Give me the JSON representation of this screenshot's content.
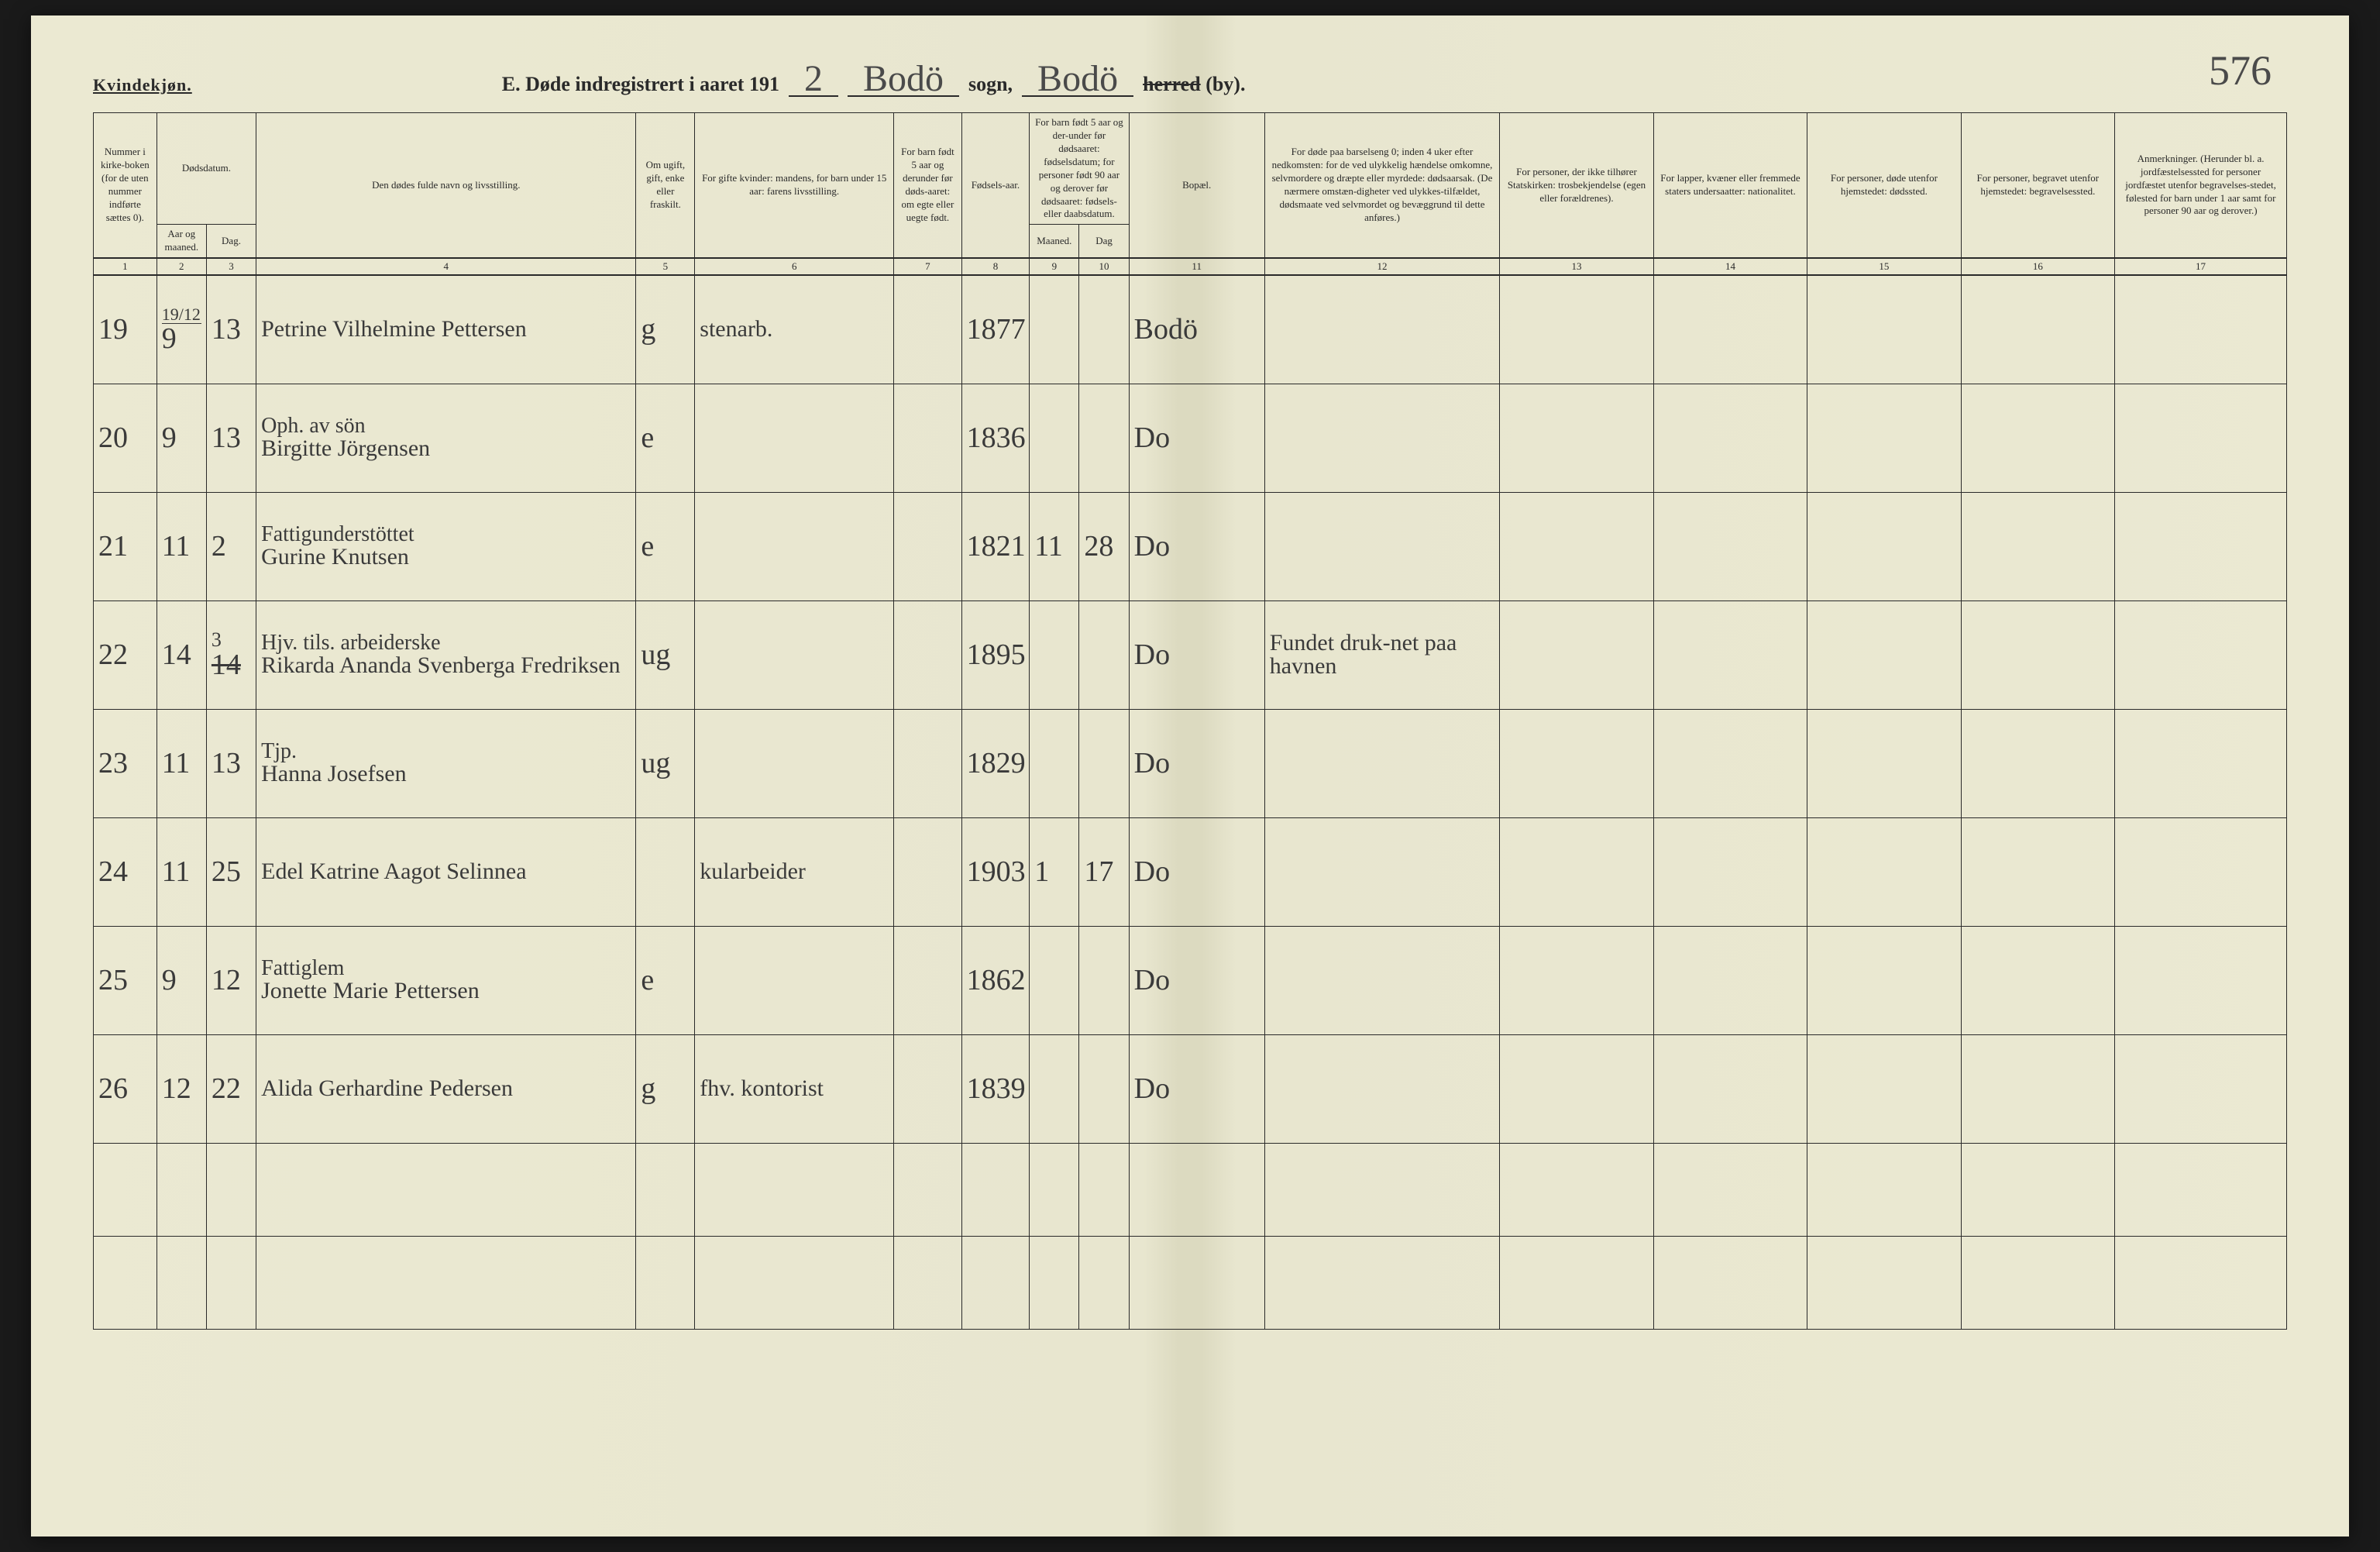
{
  "header": {
    "gender_label": "Kvindekjøn.",
    "title_prefix": "E.   Døde indregistrert i aaret 191",
    "year_digit": "2",
    "sogn_name": "Bodö",
    "sogn_label": "sogn,",
    "herred_name": "Bodö",
    "herred_label_strike": "herred",
    "herred_label_suffix": "(by).",
    "page_number": "576"
  },
  "columns": {
    "h1": "Nummer i kirke-boken (for de uten nummer indførte sættes 0).",
    "h2a": "Dødsdatum.",
    "h2": "Aar og maaned.",
    "h3": "Dag.",
    "h4": "Den dødes fulde navn og livsstilling.",
    "h5": "Om ugift, gift, enke eller fraskilt.",
    "h6": "For gifte kvinder: mandens, for barn under 15 aar: farens livsstilling.",
    "h7": "For barn født 5 aar og derunder før døds-aaret: om egte eller uegte født.",
    "h8": "Fødsels-aar.",
    "h9a": "For barn født 5 aar og der-under før dødsaaret: fødselsdatum; for personer født 90 aar og derover før dødsaaret: fødsels- eller daabsdatum.",
    "h9": "Maaned.",
    "h10": "Dag",
    "h11": "Bopæl.",
    "h12": "For døde paa barselseng 0; inden 4 uker efter nedkomsten: for de ved ulykkelig hændelse omkomne, selvmordere og dræpte eller myrdede: dødsaarsak. (De nærmere omstæn-digheter ved ulykkes-tilfældet, dødsmaate ved selvmordet og bevæggrund til dette anføres.)",
    "h13": "For personer, der ikke tilhører Statskirken: trosbekjendelse (egen eller forældrenes).",
    "h14": "For lapper, kvæner eller fremmede staters undersaatter: nationalitet.",
    "h15": "For personer, døde utenfor hjemstedet: dødssted.",
    "h16": "For personer, begravet utenfor hjemstedet: begravelsessted.",
    "h17": "Anmerkninger. (Herunder bl. a. jordfæstelsessted for personer jordfæstet utenfor begravelses-stedet, følested for barn under 1 aar samt for personer 90 aar og derover.)",
    "n1": "1",
    "n2": "2",
    "n3": "3",
    "n4": "4",
    "n5": "5",
    "n6": "6",
    "n7": "7",
    "n8": "8",
    "n9": "9",
    "n10": "10",
    "n11": "11",
    "n12": "12",
    "n13": "13",
    "n14": "14",
    "n15": "15",
    "n16": "16",
    "n17": "17"
  },
  "year_sub": "19/12",
  "rows": [
    {
      "num": "19",
      "mnd": "9",
      "dag": "13",
      "navn": "Petrine Vilhelmine Pettersen",
      "stand": "g",
      "far": "stenarb.",
      "faar": "1877",
      "bopael": "Bodö"
    },
    {
      "num": "20",
      "mnd": "9",
      "dag": "13",
      "navn_top": "Oph. av sön",
      "navn": "Birgitte Jörgensen",
      "stand": "e",
      "faar": "1836",
      "bopael": "Do"
    },
    {
      "num": "21",
      "mnd": "11",
      "dag": "2",
      "navn_top": "Fattigunderstöttet",
      "navn": "Gurine Knutsen",
      "stand": "e",
      "faar": "1821",
      "fmnd": "11",
      "fdag": "28",
      "bopael": "Do"
    },
    {
      "num": "22",
      "mnd": "14",
      "dag_top": "3",
      "dag": "14",
      "navn_top": "Hjv. tils. arbeiderske",
      "navn": "Rikarda Ananda Svenberga Fredriksen",
      "stand": "ug",
      "faar": "1895",
      "bopael": "Do",
      "anm": "Fundet druk-net paa havnen"
    },
    {
      "num": "23",
      "mnd": "11",
      "dag": "13",
      "navn_top": "Tjp.",
      "navn": "Hanna Josefsen",
      "stand": "ug",
      "faar": "1829",
      "bopael": "Do"
    },
    {
      "num": "24",
      "mnd": "11",
      "dag": "25",
      "navn": "Edel Katrine Aagot Selinnea",
      "far": "kularbeider",
      "faar": "1903",
      "fmnd": "1",
      "fdag": "17",
      "bopael": "Do"
    },
    {
      "num": "25",
      "mnd": "9",
      "dag": "12",
      "navn_top": "Fattiglem",
      "navn": "Jonette Marie Pettersen",
      "stand": "e",
      "faar": "1862",
      "bopael": "Do"
    },
    {
      "num": "26",
      "mnd": "12",
      "dag": "22",
      "navn": "Alida Gerhardine Pedersen",
      "stand": "g",
      "far": "fhv. kontorist",
      "faar": "1839",
      "bopael": "Do"
    }
  ]
}
